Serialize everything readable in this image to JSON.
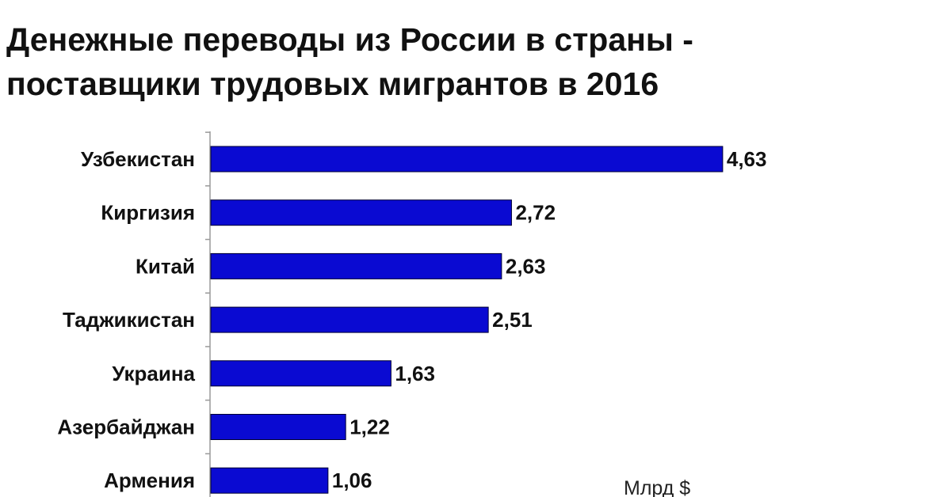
{
  "title_lines": [
    "Денежные переводы из России в страны -",
    "поставщики трудовых мигрантов в 2016"
  ],
  "chart_data": {
    "type": "bar",
    "orientation": "horizontal",
    "title": "Денежные переводы из России в страны - поставщики трудовых мигрантов в 2016",
    "categories": [
      "Узбекистан",
      "Киргизия",
      "Китай",
      "Таджикистан",
      "Украина",
      "Азербайджан",
      "Армения"
    ],
    "values": [
      4.63,
      2.72,
      2.63,
      2.51,
      1.63,
      1.22,
      1.06
    ],
    "value_labels": [
      "4,63",
      "2,72",
      "2,63",
      "2,51",
      "1,63",
      "1,22",
      "1,06"
    ],
    "unit": "Млрд $",
    "xlim": [
      0,
      5
    ],
    "grid": false,
    "legend": "none",
    "bar_color": "#0a0ad2"
  }
}
